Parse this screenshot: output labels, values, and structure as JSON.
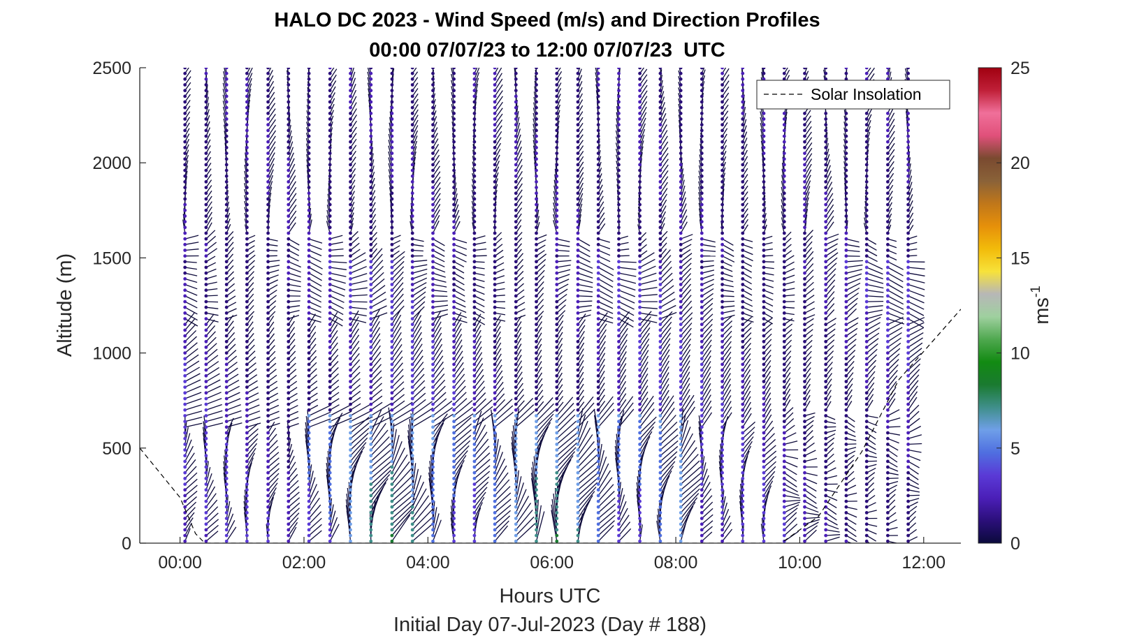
{
  "chart_data": {
    "type": "wind_barb_profile",
    "title": "HALO DC 2023 - Wind Speed (m/s) and Direction Profiles",
    "subtitle": "00:00 07/07/23 to 12:00 07/07/23  UTC",
    "xlabel": "Hours UTC",
    "xlabel2": "Initial Day 07-Jul-2023 (Day # 188)",
    "ylabel": "Altitude (m)",
    "xlim_hours": [
      -0.65,
      12.6
    ],
    "ylim": [
      0,
      2500
    ],
    "xticks": [
      0,
      2,
      4,
      6,
      8,
      10,
      12
    ],
    "xtick_labels": [
      "00:00",
      "02:00",
      "04:00",
      "06:00",
      "08:00",
      "10:00",
      "12:00"
    ],
    "yticks": [
      0,
      500,
      1000,
      1500,
      2000,
      2500
    ],
    "ytick_labels": [
      "0",
      "500",
      "1000",
      "1500",
      "2000",
      "2500"
    ],
    "profile_times_hours": [
      0.08,
      0.42,
      0.75,
      1.08,
      1.42,
      1.75,
      2.08,
      2.42,
      2.75,
      3.08,
      3.42,
      3.75,
      4.08,
      4.42,
      4.75,
      5.08,
      5.42,
      5.75,
      6.08,
      6.42,
      6.75,
      7.08,
      7.42,
      7.75,
      8.08,
      8.42,
      8.75,
      9.08,
      9.42,
      9.75,
      10.08,
      10.42,
      10.75,
      11.08,
      11.42,
      11.75
    ],
    "altitude_step_m": 30,
    "altitude_top_m": 2500,
    "legend": {
      "entries": [
        "Solar Insolation"
      ],
      "position": "top-right"
    },
    "solar_insolation": {
      "style": "dashed",
      "x_hours": [
        -0.65,
        0.0,
        0.25,
        0.4,
        9.7,
        10.3,
        11.0,
        11.6,
        12.6
      ],
      "y_m": [
        500,
        240,
        50,
        0,
        0,
        140,
        480,
        860,
        1230
      ]
    },
    "colorbar": {
      "label": "ms",
      "label_exponent": "-1",
      "range": [
        0,
        25
      ],
      "ticks": [
        0,
        5,
        10,
        15,
        20,
        25
      ],
      "colors": [
        "#0b0a3c",
        "#2b0f7a",
        "#4b1fb8",
        "#5a3ad6",
        "#4f6fe0",
        "#6f9fe8",
        "#3f8f8a",
        "#1a7a30",
        "#128a12",
        "#4fa84f",
        "#9fd09f",
        "#b7b7b7",
        "#f7e23a",
        "#f2bb0a",
        "#e6900a",
        "#c0771a",
        "#8a6238",
        "#7a4a30",
        "#e0507a",
        "#f0709a",
        "#c02038",
        "#a00010"
      ]
    },
    "wind_field_description": {
      "speed_range_ms": [
        0,
        8
      ],
      "typical_speed_ms": [
        1,
        4
      ]
    }
  }
}
